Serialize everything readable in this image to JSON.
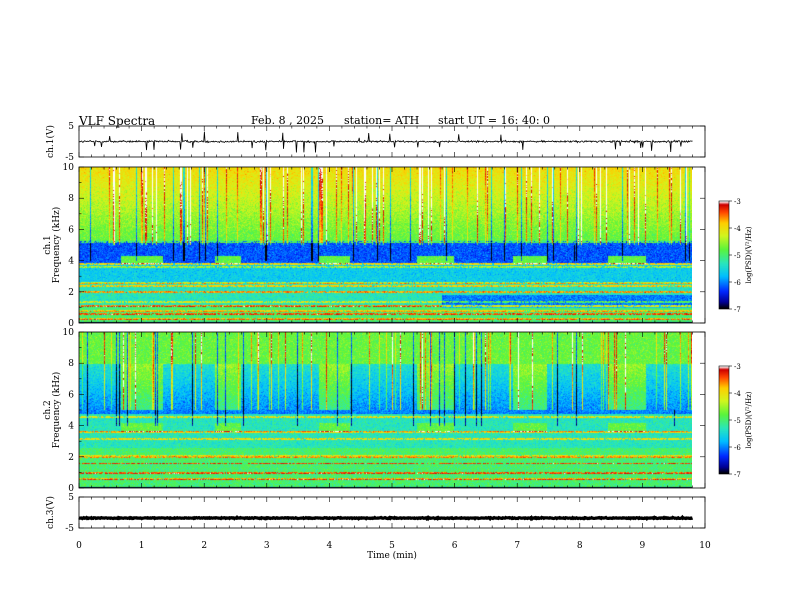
{
  "header": {
    "title": "VLF  Spectra",
    "date": "Feb. 8  , 2025",
    "station": "station= ATH",
    "start_ut": "start  UT  =   16: 40: 0"
  },
  "colors": {
    "background": "#ffffff",
    "axis": "#000000",
    "colormap": [
      "#000000",
      "#0000b0",
      "#0030ff",
      "#00c0ff",
      "#20e0c0",
      "#40f040",
      "#d0f020",
      "#ffd000",
      "#ff5000",
      "#d00000",
      "#ffffff"
    ]
  },
  "chart_data": [
    {
      "type": "line",
      "panel": "ch1-waveform",
      "ylabel": "ch.1(V)",
      "ylim": [
        -5,
        5
      ],
      "yticks": [
        "5",
        "-5"
      ],
      "xlim": [
        0,
        10
      ],
      "mean_level": 0,
      "noise_amplitude": 0.7,
      "spike_max": 3.5
    },
    {
      "type": "heatmap",
      "panel": "ch1-spectrogram",
      "ylabel": "Frequency  (kHz)",
      "ylabel_prefix": "ch.1",
      "ylim": [
        0,
        10
      ],
      "yticks": [
        "0",
        "2",
        "4",
        "6",
        "8",
        "10"
      ],
      "xlim": [
        0,
        9.8
      ],
      "colorbar": {
        "label": "log(PSD)(V²/Hz)",
        "range": [
          -7,
          -3
        ],
        "ticks": [
          "-3",
          "-4",
          "-5",
          "-6",
          "-7"
        ]
      },
      "transmitter_on_intervals_min": [
        [
          0.67,
          1.33
        ],
        [
          2.17,
          2.58
        ],
        [
          3.83,
          4.33
        ],
        [
          5.4,
          5.98
        ],
        [
          6.93,
          7.48
        ],
        [
          8.45,
          9.05
        ]
      ],
      "transmitter_band_khz": [
        3.8,
        4.3
      ],
      "persistent_lines_khz": [
        0.3,
        0.6,
        0.8,
        1.1,
        1.4,
        2.0,
        2.4,
        2.6,
        3.6,
        3.8,
        5.2
      ],
      "quiet_band_khz": [
        3.9,
        5.3
      ]
    },
    {
      "type": "heatmap",
      "panel": "ch2-spectrogram",
      "ylabel": "Frequency  (kHz)",
      "ylabel_prefix": "ch.2",
      "ylim": [
        0,
        10
      ],
      "yticks": [
        "0",
        "2",
        "4",
        "6",
        "8",
        "10"
      ],
      "xlim": [
        0,
        9.8
      ],
      "colorbar": {
        "label": "log(PSD)(V²/Hz)",
        "range": [
          -7,
          -3
        ],
        "ticks": [
          "-3",
          "-4",
          "-5",
          "-6",
          "-7"
        ]
      },
      "transmitter_on_intervals_min": [
        [
          0.67,
          1.33
        ],
        [
          2.17,
          2.58
        ],
        [
          3.83,
          4.33
        ],
        [
          5.4,
          5.98
        ],
        [
          6.93,
          7.48
        ],
        [
          8.45,
          9.05
        ]
      ],
      "transmitter_band_khz": [
        3.6,
        4.2
      ],
      "persistent_lines_khz": [
        0.6,
        1.0,
        1.6,
        2.0,
        2.1,
        3.2,
        3.6,
        4.6
      ],
      "quiet_band_khz": [
        4.8,
        8.0
      ]
    },
    {
      "type": "line",
      "panel": "ch3-waveform",
      "ylabel": "ch.3(V)",
      "ylim": [
        -5,
        5
      ],
      "yticks": [
        "5",
        "-5"
      ],
      "xlim": [
        0,
        10
      ],
      "mean_level": -1.8,
      "noise_amplitude": 0.15
    }
  ],
  "x_axis": {
    "label": "Time  (min)",
    "ticks": [
      "0",
      "1",
      "2",
      "3",
      "4",
      "5",
      "6",
      "7",
      "8",
      "9",
      "10"
    ],
    "range": [
      0,
      10
    ]
  }
}
